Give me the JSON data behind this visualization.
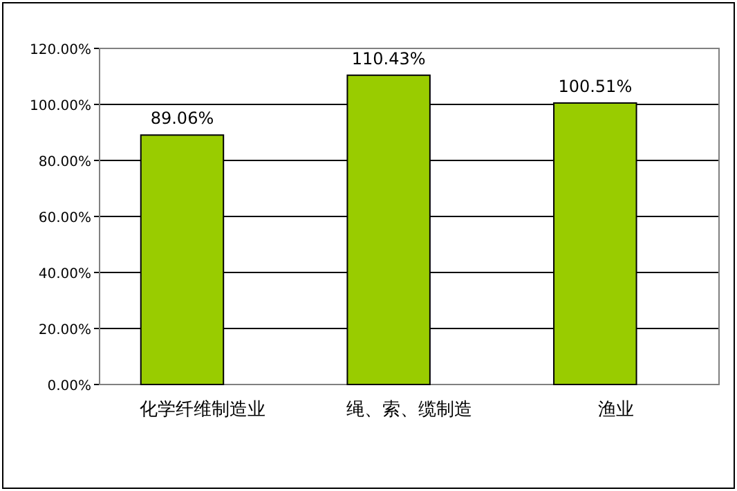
{
  "chart_data": {
    "type": "bar",
    "categories": [
      "化学纤维制造业",
      "绳、索、缆制造",
      "渔业"
    ],
    "values": [
      89.06,
      110.43,
      100.51
    ],
    "value_labels": [
      "89.06%",
      "110.43%",
      "100.51%"
    ],
    "color": "#99cc00",
    "ylim": [
      0,
      120
    ],
    "yticks": [
      {
        "value": 0,
        "label": "0.00%"
      },
      {
        "value": 20,
        "label": "20.00%"
      },
      {
        "value": 40,
        "label": "40.00%"
      },
      {
        "value": 60,
        "label": "60.00%"
      },
      {
        "value": 80,
        "label": "80.00%"
      },
      {
        "value": 100,
        "label": "100.00%"
      },
      {
        "value": 120,
        "label": "120.00%"
      }
    ],
    "grid": "y"
  }
}
